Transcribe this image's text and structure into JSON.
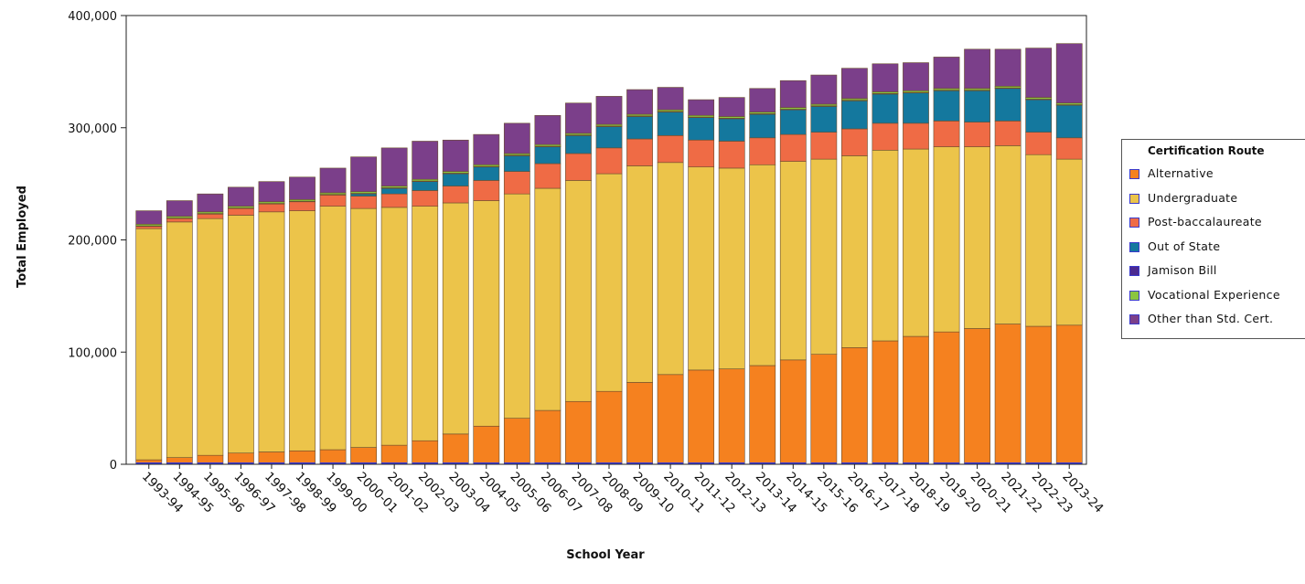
{
  "chart_data": {
    "type": "bar",
    "stacked": true,
    "title": "",
    "xlabel": "School Year",
    "ylabel": "Total Employed",
    "ylim": [
      0,
      400000
    ],
    "yticks": [
      "0",
      "100,000",
      "200,000",
      "300,000",
      "400,000"
    ],
    "grid": false,
    "legend_title": "Certification Route",
    "legend_position": "right",
    "categories": [
      "1993-94",
      "1994-95",
      "1995-96",
      "1996-97",
      "1997-98",
      "1998-99",
      "1999-00",
      "2000-01",
      "2001-02",
      "2002-03",
      "2003-04",
      "2004-05",
      "2005-06",
      "2006-07",
      "2007-08",
      "2008-09",
      "2009-10",
      "2010-11",
      "2011-12",
      "2012-13",
      "2013-14",
      "2014-15",
      "2015-16",
      "2016-17",
      "2017-18",
      "2018-19",
      "2019-20",
      "2020-21",
      "2021-22",
      "2022-23",
      "2023-24"
    ],
    "series": [
      {
        "name": "Alternative",
        "color": "#f5811f",
        "values": [
          4000,
          6000,
          8000,
          10000,
          11000,
          12000,
          13000,
          15000,
          17000,
          21000,
          27000,
          34000,
          41000,
          48000,
          56000,
          65000,
          73000,
          80000,
          84000,
          85000,
          88000,
          93000,
          98000,
          104000,
          110000,
          114000,
          118000,
          121000,
          125000,
          123000,
          124000
        ]
      },
      {
        "name": "Undergraduate",
        "color": "#ecc44a",
        "values": [
          206000,
          210000,
          211000,
          212000,
          214000,
          214000,
          217000,
          213000,
          212000,
          209000,
          206000,
          201000,
          200000,
          198000,
          197000,
          194000,
          193000,
          189000,
          181000,
          179000,
          179000,
          177000,
          174000,
          171000,
          170000,
          167000,
          165000,
          162000,
          159000,
          153000,
          148000
        ]
      },
      {
        "name": "Post-baccalaureate",
        "color": "#ef6b45",
        "values": [
          2000,
          3000,
          4000,
          6000,
          7000,
          8000,
          10000,
          11000,
          12000,
          14000,
          15000,
          18000,
          20000,
          22000,
          24000,
          23000,
          24000,
          24000,
          24000,
          24000,
          24000,
          24000,
          24000,
          24000,
          24000,
          23000,
          23000,
          22000,
          22000,
          20000,
          19000
        ]
      },
      {
        "name": "Out of State",
        "color": "#14789e",
        "values": [
          0,
          0,
          0,
          0,
          0,
          0,
          0,
          2000,
          5000,
          8000,
          11000,
          12000,
          14000,
          15000,
          16000,
          19000,
          20000,
          21000,
          20000,
          20000,
          21000,
          22000,
          23000,
          25000,
          26000,
          27000,
          27000,
          28000,
          29000,
          29000,
          29000
        ]
      },
      {
        "name": "Jamison Bill",
        "color": "#4b2a91",
        "values": [
          500,
          500,
          500,
          500,
          500,
          500,
          500,
          500,
          500,
          500,
          500,
          500,
          500,
          500,
          500,
          500,
          500,
          500,
          500,
          500,
          500,
          500,
          500,
          500,
          500,
          500,
          500,
          500,
          500,
          500,
          500
        ]
      },
      {
        "name": "Vocational Experience",
        "color": "#8bc53f",
        "values": [
          1500,
          1500,
          1500,
          1500,
          1500,
          1500,
          1500,
          1500,
          1500,
          1500,
          1500,
          1500,
          1500,
          1500,
          1500,
          1500,
          1500,
          1500,
          1500,
          1500,
          1500,
          1500,
          1500,
          1500,
          1500,
          1500,
          1500,
          1500,
          1500,
          1500,
          1500
        ]
      },
      {
        "name": "Other than Std. Cert.",
        "color": "#7b3f8a",
        "values": [
          12000,
          14000,
          16000,
          17000,
          18000,
          20000,
          22000,
          31000,
          34000,
          34000,
          28000,
          27000,
          27000,
          26000,
          27000,
          25000,
          22000,
          20000,
          14000,
          17000,
          21000,
          24000,
          26000,
          27000,
          25000,
          25000,
          28000,
          35000,
          33000,
          44000,
          53000
        ]
      }
    ]
  }
}
